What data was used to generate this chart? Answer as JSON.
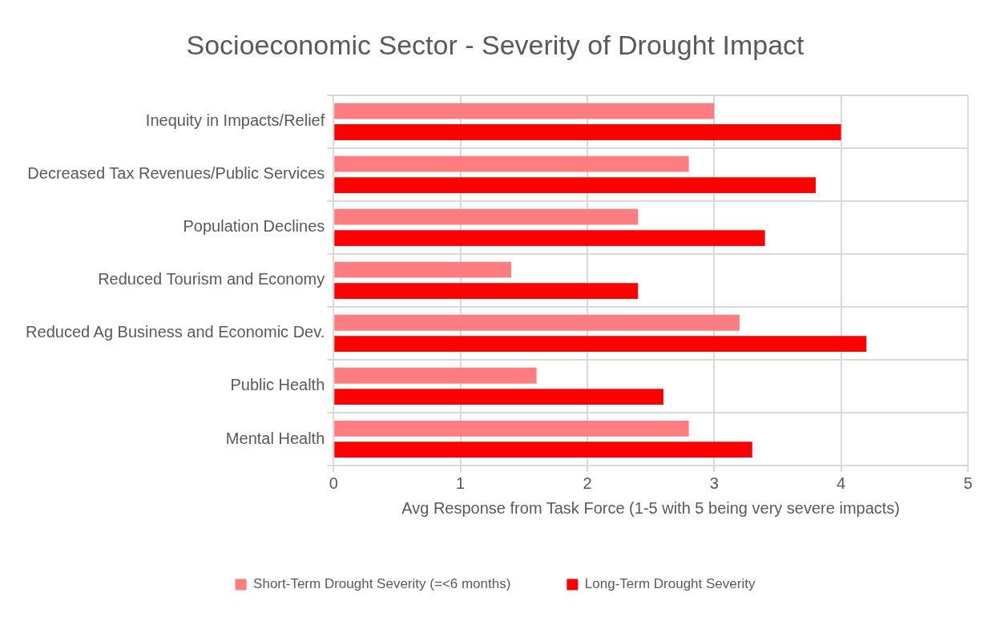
{
  "chart_data": {
    "type": "bar",
    "orientation": "horizontal",
    "title": "Socioeconomic Sector - Severity of Drought Impact",
    "xlabel": "Avg Response from Task Force (1-5 with 5 being very severe impacts)",
    "categories": [
      "Inequity in Impacts/Relief",
      "Decreased Tax Revenues/Public Services",
      "Population Declines",
      "Reduced Tourism and Economy",
      "Reduced Ag Business and Economic Dev.",
      "Public Health",
      "Mental Health"
    ],
    "series": [
      {
        "name": "Short-Term Drought Severity (=<6 months)",
        "color": "#ff7c80",
        "values": [
          3.0,
          2.8,
          2.4,
          1.4,
          3.2,
          1.6,
          2.8
        ]
      },
      {
        "name": "Long-Term Drought Severity",
        "color": "#ff0000",
        "values": [
          4.0,
          3.8,
          3.4,
          2.4,
          4.2,
          2.6,
          3.3
        ]
      }
    ],
    "xlim": [
      0,
      5
    ],
    "xticks": [
      0,
      1,
      2,
      3,
      4,
      5
    ],
    "grid": true,
    "legend": "bottom"
  }
}
